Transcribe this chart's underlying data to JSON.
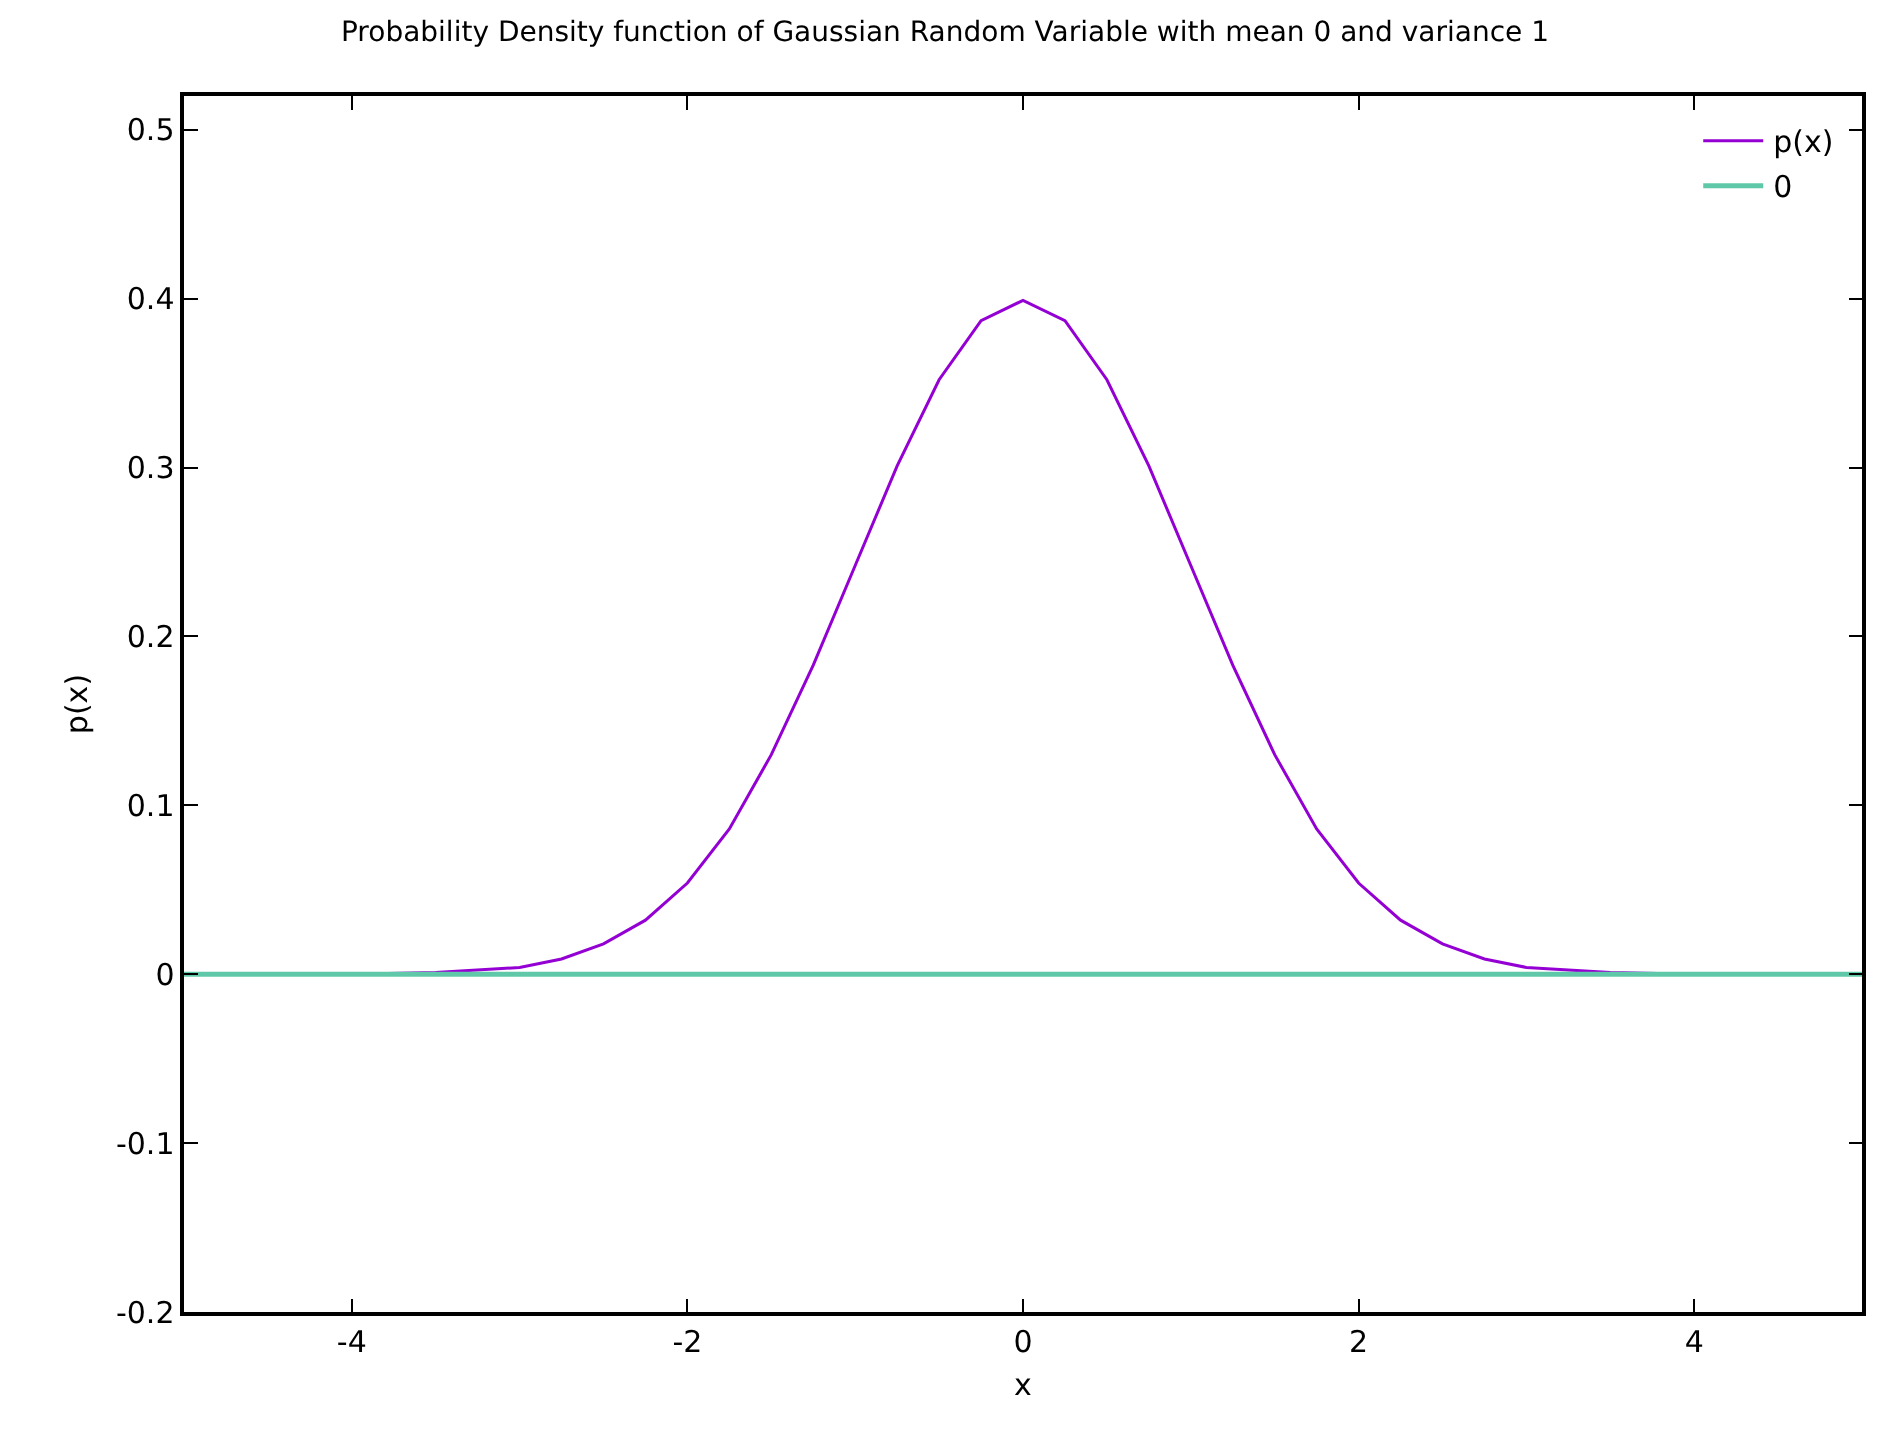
{
  "chart_data": {
    "type": "line",
    "title": "Probability Density function of Gaussian Random Variable with mean 0 and variance 1",
    "xlabel": "x",
    "ylabel": "p(x)",
    "xlim": [
      -5,
      5
    ],
    "xticks": [
      -4,
      -2,
      0,
      2,
      4
    ],
    "ylim": [
      -0.2,
      0.52
    ],
    "yticks": [
      -0.2,
      -0.1,
      0,
      0.1,
      0.2,
      0.3,
      0.4,
      0.5
    ],
    "grid": false,
    "legend": "top right",
    "marker": "none",
    "line_style": "solid",
    "series": [
      {
        "name": "p(x)",
        "color": "#9400d3",
        "x": [
          -4,
          -3.5,
          -3,
          -2.75,
          -2.5,
          -2.25,
          -2,
          -1.75,
          -1.5,
          -1.25,
          -1,
          -0.75,
          -0.5,
          -0.25,
          0,
          0.25,
          0.5,
          0.75,
          1,
          1.25,
          1.5,
          1.75,
          2,
          2.25,
          2.5,
          2.75,
          3,
          3.5,
          4
        ],
        "values": [
          0.0,
          0.001,
          0.004,
          0.009,
          0.018,
          0.032,
          0.054,
          0.086,
          0.13,
          0.183,
          0.242,
          0.301,
          0.352,
          0.387,
          0.399,
          0.387,
          0.352,
          0.301,
          0.242,
          0.183,
          0.13,
          0.086,
          0.054,
          0.032,
          0.018,
          0.009,
          0.004,
          0.001,
          0.0
        ]
      },
      {
        "name": "0",
        "color": "#5fc8a8",
        "x": [
          -5,
          5
        ],
        "values": [
          0,
          0
        ]
      }
    ]
  }
}
